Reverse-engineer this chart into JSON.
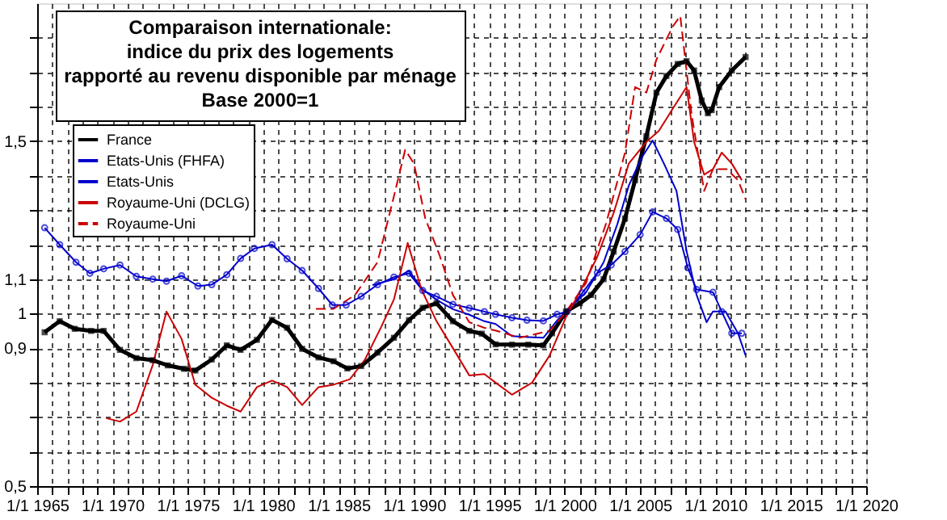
{
  "chart_data": {
    "type": "line",
    "title": "Comparaison internationale:\nindice du prix des logements\nrapporté au revenu disponible par ménage\nBase 2000=1",
    "xlim": [
      "1965-01-01",
      "2020-01-01"
    ],
    "xticks": [
      {
        "value": "1965-01-01",
        "label": "1/1 1965"
      },
      {
        "value": "1966-01-01",
        "label": null
      },
      {
        "value": "1967-01-01",
        "label": null
      },
      {
        "value": "1968-01-01",
        "label": null
      },
      {
        "value": "1969-01-01",
        "label": null
      },
      {
        "value": "1970-01-01",
        "label": "1/1 1970"
      },
      {
        "value": "1971-01-01",
        "label": null
      },
      {
        "value": "1972-01-01",
        "label": null
      },
      {
        "value": "1973-01-01",
        "label": null
      },
      {
        "value": "1974-01-01",
        "label": null
      },
      {
        "value": "1975-01-01",
        "label": "1/1 1975"
      },
      {
        "value": "1976-01-01",
        "label": null
      },
      {
        "value": "1977-01-01",
        "label": null
      },
      {
        "value": "1978-01-01",
        "label": null
      },
      {
        "value": "1979-01-01",
        "label": null
      },
      {
        "value": "1980-01-01",
        "label": "1/1 1980"
      },
      {
        "value": "1981-01-01",
        "label": null
      },
      {
        "value": "1982-01-01",
        "label": null
      },
      {
        "value": "1983-01-01",
        "label": null
      },
      {
        "value": "1984-01-01",
        "label": null
      },
      {
        "value": "1985-01-01",
        "label": "1/1 1985"
      },
      {
        "value": "1986-01-01",
        "label": null
      },
      {
        "value": "1987-01-01",
        "label": null
      },
      {
        "value": "1988-01-01",
        "label": null
      },
      {
        "value": "1989-01-01",
        "label": null
      },
      {
        "value": "1990-01-01",
        "label": "1/1 1990"
      },
      {
        "value": "1991-01-01",
        "label": null
      },
      {
        "value": "1992-01-01",
        "label": null
      },
      {
        "value": "1993-01-01",
        "label": null
      },
      {
        "value": "1994-01-01",
        "label": null
      },
      {
        "value": "1995-01-01",
        "label": "1/1 1995"
      },
      {
        "value": "1996-01-01",
        "label": null
      },
      {
        "value": "1997-01-01",
        "label": null
      },
      {
        "value": "1998-01-01",
        "label": null
      },
      {
        "value": "1999-01-01",
        "label": null
      },
      {
        "value": "2000-01-01",
        "label": "1/1 2000"
      },
      {
        "value": "2001-01-01",
        "label": null
      },
      {
        "value": "2002-01-01",
        "label": null
      },
      {
        "value": "2003-01-01",
        "label": null
      },
      {
        "value": "2004-01-01",
        "label": null
      },
      {
        "value": "2005-01-01",
        "label": "1/1 2005"
      },
      {
        "value": "2006-01-01",
        "label": null
      },
      {
        "value": "2007-01-01",
        "label": null
      },
      {
        "value": "2008-01-01",
        "label": null
      },
      {
        "value": "2009-01-01",
        "label": null
      },
      {
        "value": "2010-01-01",
        "label": "1/1 2010"
      },
      {
        "value": "2011-01-01",
        "label": null
      },
      {
        "value": "2012-01-01",
        "label": null
      },
      {
        "value": "2013-01-01",
        "label": null
      },
      {
        "value": "2014-01-01",
        "label": null
      },
      {
        "value": "2015-01-01",
        "label": "1/1 2015"
      },
      {
        "value": "2016-01-01",
        "label": null
      },
      {
        "value": "2017-01-01",
        "label": null
      },
      {
        "value": "2018-01-01",
        "label": null
      },
      {
        "value": "2019-01-01",
        "label": null
      },
      {
        "value": "2020-01-01",
        "label": "1/1 2020"
      }
    ],
    "ylim": [
      0.5,
      1.9
    ],
    "yticks": [
      {
        "value": 0.5,
        "label": "0,5"
      },
      {
        "value": 0.6,
        "label": null
      },
      {
        "value": 0.7,
        "label": null
      },
      {
        "value": 0.8,
        "label": null
      },
      {
        "value": 0.9,
        "label": "0,9"
      },
      {
        "value": 1,
        "label": "1"
      },
      {
        "value": 1.1,
        "label": "1,1"
      },
      {
        "value": 1.2,
        "label": null
      },
      {
        "value": 1.3,
        "label": null
      },
      {
        "value": 1.4,
        "label": null
      },
      {
        "value": 1.5,
        "label": "1,5"
      },
      {
        "value": 1.6,
        "label": null
      },
      {
        "value": 1.7,
        "label": null
      },
      {
        "value": 1.8,
        "label": null
      }
    ],
    "grid": true,
    "legend": "top left",
    "series": [
      {
        "name": "France",
        "color": "#000000",
        "marker": "square",
        "line_style": "solid",
        "x": [
          "1965-07",
          "1966-07",
          "1967-07",
          "1968-08",
          "1969-06",
          "1970-07",
          "1971-08",
          "1972-09",
          "1973-09",
          "1974-10",
          "1975-07",
          "1976-08",
          "1977-08",
          "1978-07",
          "1979-08",
          "1980-08",
          "1981-08",
          "1982-08",
          "1983-09",
          "1984-09",
          "1985-08",
          "1986-07",
          "1987-08",
          "1988-09",
          "1989-09",
          "1990-08",
          "1991-07",
          "1992-08",
          "1993-09",
          "1994-07",
          "1995-06",
          "1996-07",
          "1997-08",
          "1998-08",
          "1999-03",
          "2000-02",
          "2001-01",
          "2001-10",
          "2002-08",
          "2003-04",
          "2004-01",
          "2004-09",
          "2005-06",
          "2006-02",
          "2006-10",
          "2007-07",
          "2008-02",
          "2008-08",
          "2009-02",
          "2009-07",
          "2009-10",
          "2010-04",
          "2011-02",
          "2012-01"
        ],
        "values": [
          0.946,
          0.978,
          0.956,
          0.95,
          0.95,
          0.895,
          0.871,
          0.865,
          0.85,
          0.84,
          0.835,
          0.867,
          0.908,
          0.895,
          0.924,
          0.982,
          0.959,
          0.898,
          0.873,
          0.862,
          0.841,
          0.848,
          0.887,
          0.93,
          0.981,
          1.017,
          1.03,
          0.978,
          0.95,
          0.942,
          0.911,
          0.91,
          0.91,
          0.908,
          0.943,
          1.006,
          1.03,
          1.054,
          1.1,
          1.18,
          1.276,
          1.387,
          1.514,
          1.641,
          1.689,
          1.724,
          1.732,
          1.705,
          1.618,
          1.581,
          1.59,
          1.657,
          1.705,
          1.744
        ]
      },
      {
        "name": "Etats-Unis (FHFA)",
        "color": "#0000cc",
        "marker": "circle",
        "line_style": "solid",
        "x": [
          "1965-07",
          "1966-07",
          "1967-08",
          "1968-07",
          "1969-06",
          "1970-07",
          "1971-08",
          "1972-09",
          "1973-08",
          "1974-08",
          "1975-09",
          "1976-08",
          "1977-08",
          "1978-07",
          "1979-06",
          "1980-08",
          "1981-08",
          "1982-08",
          "1983-09",
          "1984-08",
          "1985-07",
          "1986-07",
          "1987-08",
          "1988-09",
          "1989-09",
          "1990-08",
          "1991-07",
          "1992-08",
          "1993-09",
          "1994-09",
          "1995-06",
          "1996-07",
          "1997-07",
          "1998-08",
          "1999-07",
          "2000-03",
          "2001-03",
          "2002-03",
          "2003-02",
          "2004-01",
          "2005-01",
          "2005-11",
          "2006-10",
          "2007-07",
          "2008-03",
          "2008-10",
          "2009-11",
          "2010-06",
          "2011-02",
          "2011-10"
        ],
        "values": [
          1.249,
          1.2,
          1.149,
          1.117,
          1.13,
          1.141,
          1.108,
          1.1,
          1.094,
          1.11,
          1.08,
          1.084,
          1.113,
          1.16,
          1.189,
          1.2,
          1.159,
          1.125,
          1.073,
          1.025,
          1.025,
          1.05,
          1.084,
          1.106,
          1.117,
          1.067,
          1.05,
          1.027,
          1.016,
          1.006,
          0.998,
          0.988,
          0.981,
          0.979,
          0.998,
          1.006,
          1.06,
          1.118,
          1.141,
          1.18,
          1.229,
          1.295,
          1.276,
          1.244,
          1.133,
          1.07,
          1.062,
          1.006,
          0.943,
          0.943
        ]
      },
      {
        "name": "Etats-Unis",
        "color": "#0000cc",
        "marker": "none",
        "line_style": "solid",
        "x": [
          "1987-04",
          "1988-09",
          "1989-09",
          "1990-08",
          "1991-07",
          "1992-08",
          "1993-09",
          "1994-09",
          "1995-06",
          "1996-07",
          "1997-08",
          "1998-08",
          "1999-07",
          "2000-03",
          "2001-06",
          "2002-08",
          "2003-07",
          "2004-04",
          "2005-02",
          "2005-11",
          "2006-08",
          "2007-06",
          "2008-02",
          "2008-10",
          "2009-06",
          "2009-11",
          "2010-09",
          "2011-07",
          "2012-01"
        ],
        "values": [
          1.083,
          1.1,
          1.124,
          1.07,
          1.04,
          1.013,
          0.997,
          0.978,
          0.97,
          0.935,
          0.932,
          0.93,
          0.98,
          1.01,
          1.062,
          1.149,
          1.26,
          1.371,
          1.451,
          1.502,
          1.435,
          1.356,
          1.181,
          1.054,
          0.975,
          1.006,
          1.006,
          0.943,
          0.879
        ]
      },
      {
        "name": "Royaume-Uni (DCLG)",
        "color": "#cc0000",
        "marker": "none",
        "line_style": "solid",
        "x": [
          "1969-08",
          "1970-07",
          "1971-08",
          "1972-09",
          "1973-08",
          "1974-08",
          "1975-07",
          "1976-08",
          "1977-08",
          "1978-07",
          "1979-08",
          "1980-08",
          "1981-08",
          "1982-08",
          "1983-09",
          "1984-09",
          "1985-10",
          "1986-10",
          "1987-11",
          "1988-09",
          "1989-08",
          "1990-07",
          "1991-07",
          "1992-08",
          "1993-09",
          "1994-09",
          "1995-06",
          "1996-07",
          "1997-11",
          "1999-01",
          "2000-02",
          "2001-02",
          "2002-03",
          "2003-04",
          "2004-04",
          "2005-06",
          "2006-04",
          "2007-03",
          "2008-02",
          "2008-08",
          "2009-04",
          "2009-11",
          "2010-06",
          "2011-02",
          "2011-10"
        ],
        "values": [
          0.697,
          0.687,
          0.716,
          0.851,
          1.006,
          0.927,
          0.794,
          0.756,
          0.733,
          0.716,
          0.787,
          0.806,
          0.787,
          0.735,
          0.787,
          0.794,
          0.81,
          0.867,
          0.962,
          1.041,
          1.205,
          1.07,
          0.978,
          0.9,
          0.821,
          0.825,
          0.8,
          0.765,
          0.8,
          0.879,
          0.99,
          1.07,
          1.165,
          1.292,
          1.435,
          1.498,
          1.53,
          1.594,
          1.657,
          1.498,
          1.403,
          1.419,
          1.467,
          1.435,
          1.387
        ]
      },
      {
        "name": "Royaume-Uni",
        "color": "#cc0000",
        "marker": "none",
        "line_style": "dashed",
        "x": [
          "1983-07",
          "1984-09",
          "1986-02",
          "1987-08",
          "1988-09",
          "1989-06",
          "1990-01",
          "1990-10",
          "1991-09",
          "1992-08",
          "1993-09",
          "1994-09",
          "1995-07",
          "1997-01",
          "1999-01",
          "2000-01",
          "2001-06",
          "2002-10",
          "2004-01",
          "2004-09",
          "2005-06",
          "2006-02",
          "2007-03",
          "2007-09",
          "2008-06",
          "2009-04",
          "2009-11",
          "2010-10",
          "2011-07",
          "2012-01"
        ],
        "values": [
          1.014,
          1.014,
          1.054,
          1.149,
          1.34,
          1.475,
          1.435,
          1.276,
          1.173,
          1.054,
          0.975,
          0.959,
          0.95,
          0.93,
          0.95,
          1.0,
          1.089,
          1.262,
          1.467,
          1.657,
          1.641,
          1.737,
          1.832,
          1.863,
          1.578,
          1.356,
          1.419,
          1.419,
          1.387,
          1.332
        ]
      }
    ]
  }
}
